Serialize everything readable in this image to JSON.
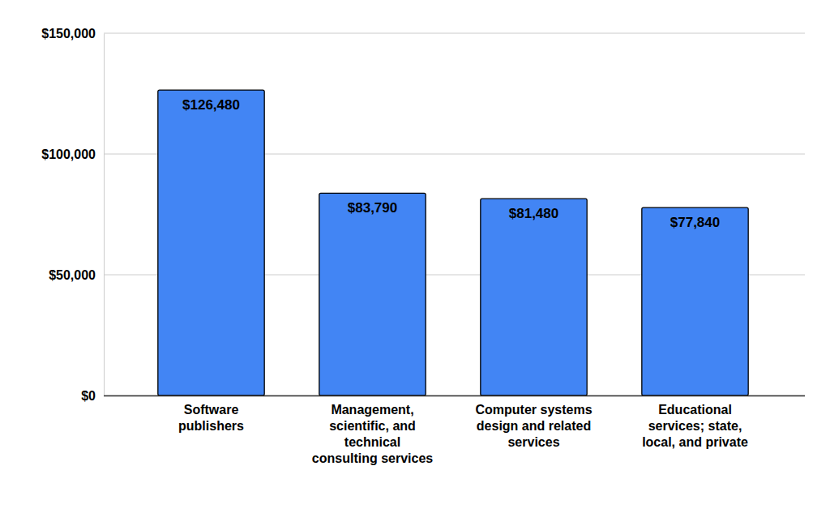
{
  "chart_data": {
    "type": "bar",
    "categories": [
      "Software publishers",
      "Management, scientific, and technical consulting services",
      "Computer systems design and related services",
      "Educational services; state, local, and private"
    ],
    "values": [
      126480,
      83790,
      81480,
      77840
    ],
    "value_labels": [
      "$126,480",
      "$83,790",
      "$81,480",
      "$77,840"
    ],
    "color": "#4285f4",
    "ylim": [
      0,
      150000
    ],
    "yticks": [
      {
        "value": 0,
        "label": "$0"
      },
      {
        "value": 50000,
        "label": "$50,000"
      },
      {
        "value": 100000,
        "label": "$100,000"
      },
      {
        "value": 150000,
        "label": "$150,000"
      }
    ],
    "grid": true,
    "data_labels": true
  }
}
